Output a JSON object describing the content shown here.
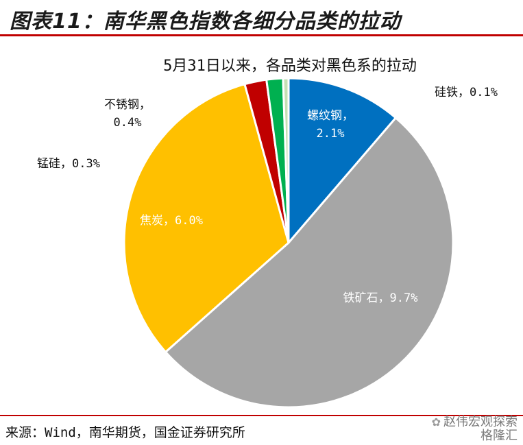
{
  "figure_title": "图表11：南华黑色指数各细分品类的拉动",
  "source": "来源：Wind，南华期货，国金证券研究所",
  "watermark": "赵伟宏观探索",
  "watermark_sub": "格隆汇",
  "chart_data": {
    "type": "pie",
    "title": "5月31日以来，各品类对黑色系的拉动",
    "unit": "%",
    "slices": [
      {
        "name": "螺纹钢",
        "value": 2.1,
        "label": "螺纹钢，\n2.1%",
        "color": "#0070c0",
        "text_color": "#ffffff"
      },
      {
        "name": "铁矿石",
        "value": 9.7,
        "label": "铁矿石，9.7%",
        "color": "#a6a6a6",
        "text_color": "#ffffff"
      },
      {
        "name": "焦炭",
        "value": 6.0,
        "label": "焦炭，6.0%",
        "color": "#ffc000",
        "text_color": "#ffffff"
      },
      {
        "name": "不锈钢",
        "value": 0.4,
        "label": "不锈钢，\n0.4%",
        "color": "#c00000",
        "text_color": "#111111"
      },
      {
        "name": "锰硅",
        "value": 0.3,
        "label": "锰硅，0.3%",
        "color": "#00b050",
        "text_color": "#111111"
      },
      {
        "name": "硅铁",
        "value": 0.1,
        "label": "硅铁，0.1%",
        "color": "#c5e0b4",
        "text_color": "#111111"
      }
    ]
  }
}
